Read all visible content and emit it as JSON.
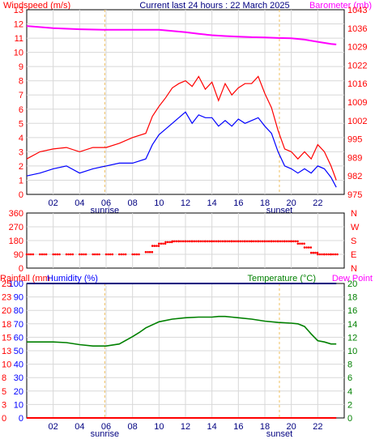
{
  "header": {
    "left_label": "Windspeed (m/s)",
    "center_label": "Current last 24 hours : 22 March 2025",
    "right_label": "Barometer (mb)"
  },
  "colors": {
    "wind_gust": "#ff0000",
    "wind_avg": "#0000ff",
    "barometer": "#ff00ff",
    "direction": "#ff0000",
    "temperature": "#008000",
    "humidity": "#000080",
    "rainfall": "#ff0000",
    "axis_red": "#ff0000",
    "axis_blue": "#0000ff",
    "axis_green": "#008000",
    "axis_magenta": "#ff00ff",
    "grid": "#d8d8d8"
  },
  "x_axis": {
    "ticks": [
      "02",
      "04",
      "06",
      "08",
      "10",
      "12",
      "14",
      "16",
      "18",
      "20",
      "22"
    ],
    "sunrise_label": "sunrise",
    "sunset_label": "sunset",
    "sunrise_hour": 5.9,
    "sunset_hour": 19.1
  },
  "chart_data": [
    {
      "type": "line",
      "name": "wind-barometer",
      "left_axis": {
        "label": "Windspeed (m/s)",
        "range": [
          0,
          13
        ],
        "ticks": [
          "0",
          "1",
          "2",
          "3",
          "4",
          "5",
          "6",
          "7",
          "8",
          "9",
          "10",
          "11",
          "12",
          "13"
        ]
      },
      "right_axis": {
        "label": "Barometer (mb)",
        "range": [
          975,
          1043
        ],
        "ticks": [
          "975",
          "982",
          "989",
          "995",
          "1002",
          "1009",
          "1016",
          "1022",
          "1029",
          "1036",
          "1043"
        ]
      },
      "x_range": [
        0,
        24
      ],
      "series": [
        {
          "name": "Wind gust",
          "x": [
            0,
            1,
            2,
            3,
            4,
            5,
            6,
            7,
            8,
            9,
            9.5,
            10,
            10.5,
            11,
            11.5,
            12,
            12.5,
            13,
            13.5,
            14,
            14.5,
            15,
            15.5,
            16,
            16.5,
            17,
            17.5,
            18,
            18.5,
            19,
            19.5,
            20,
            20.5,
            21,
            21.5,
            22,
            22.5,
            23,
            23.4
          ],
          "values": [
            2.5,
            3.0,
            3.2,
            3.3,
            3.0,
            3.3,
            3.3,
            3.6,
            4.0,
            4.3,
            5.5,
            6.2,
            6.8,
            7.5,
            7.8,
            8.0,
            7.6,
            8.3,
            7.4,
            7.9,
            6.6,
            7.8,
            7.0,
            7.5,
            7.8,
            7.8,
            8.3,
            7.1,
            6.1,
            4.5,
            3.2,
            3.0,
            2.5,
            3.0,
            2.5,
            3.5,
            3.0,
            2.0,
            1.0
          ]
        },
        {
          "name": "Wind avg",
          "x": [
            0,
            1,
            2,
            3,
            4,
            5,
            6,
            7,
            8,
            9,
            9.5,
            10,
            10.5,
            11,
            11.5,
            12,
            12.5,
            13,
            13.5,
            14,
            14.5,
            15,
            15.5,
            16,
            16.5,
            17,
            17.5,
            18,
            18.5,
            19,
            19.5,
            20,
            20.5,
            21,
            21.5,
            22,
            22.5,
            23,
            23.4
          ],
          "values": [
            1.3,
            1.5,
            1.8,
            2.0,
            1.5,
            1.8,
            2.0,
            2.2,
            2.2,
            2.5,
            3.5,
            4.2,
            4.6,
            5.0,
            5.4,
            5.8,
            5.0,
            5.6,
            5.4,
            5.4,
            4.8,
            5.2,
            4.8,
            5.3,
            5.0,
            5.2,
            5.4,
            4.8,
            4.3,
            3.0,
            2.0,
            1.8,
            1.5,
            1.8,
            1.5,
            2.0,
            1.8,
            1.2,
            0.5
          ]
        },
        {
          "name": "Barometer",
          "axis": "right",
          "x": [
            0,
            2,
            4,
            6,
            8,
            10,
            11,
            12,
            13,
            14,
            15,
            16,
            17,
            18,
            19,
            20,
            21,
            22,
            23,
            23.4
          ],
          "values": [
            1037,
            1036.2,
            1035.8,
            1035.6,
            1035.6,
            1035.6,
            1035.2,
            1034.7,
            1034.1,
            1033.6,
            1033.3,
            1033.1,
            1032.9,
            1032.8,
            1032.6,
            1032.5,
            1032.0,
            1031.2,
            1030.4,
            1030.2
          ]
        }
      ]
    },
    {
      "type": "scatter",
      "name": "wind-direction",
      "left_axis": {
        "range": [
          0,
          360
        ],
        "ticks": [
          "0",
          "90",
          "180",
          "270",
          "360"
        ]
      },
      "right_axis": {
        "ticks": [
          "N",
          "E",
          "S",
          "W",
          "N"
        ]
      },
      "x_range": [
        0,
        24
      ],
      "series": [
        {
          "name": "Direction",
          "x": [
            0,
            1,
            2,
            3,
            4,
            5,
            6,
            7,
            8,
            9,
            9.5,
            10,
            10.5,
            11,
            11.5,
            12,
            12.5,
            13,
            13.5,
            14,
            14.5,
            15,
            15.5,
            16,
            16.5,
            17,
            17.5,
            18,
            18.5,
            19,
            19.5,
            20,
            20.5,
            21,
            21.5,
            22,
            22.5,
            23
          ],
          "values": [
            90,
            90,
            90,
            90,
            90,
            90,
            90,
            90,
            90,
            105,
            145,
            160,
            170,
            175,
            175,
            175,
            175,
            175,
            175,
            175,
            175,
            175,
            175,
            175,
            175,
            175,
            175,
            175,
            175,
            175,
            175,
            175,
            160,
            135,
            100,
            90,
            90,
            90
          ]
        }
      ]
    },
    {
      "type": "line",
      "name": "temperature-humidity-rainfall",
      "left_axis": {
        "range": [
          0,
          100
        ],
        "ticks": [
          "0",
          "10",
          "20",
          "30",
          "40",
          "50",
          "60",
          "70",
          "80",
          "90",
          "100"
        ]
      },
      "left_axis_rain": {
        "range": [
          0,
          25
        ],
        "ticks": [
          "0",
          "3",
          "5",
          "8",
          "10",
          "13",
          "15",
          "18",
          "20",
          "23",
          "25"
        ]
      },
      "right_axis": {
        "label": "Temperature (°C)",
        "range": [
          0,
          20
        ],
        "ticks": [
          "0",
          "2",
          "4",
          "6",
          "8",
          "10",
          "12",
          "14",
          "16",
          "18",
          "20"
        ]
      },
      "labels": {
        "rainfall": "Rainfall (mm",
        "humidity": "Humidity (%)",
        "temperature": "Temperature (°C)",
        "dew_point": "Dew Point"
      },
      "x_range": [
        0,
        24
      ],
      "series": [
        {
          "name": "Temperature",
          "axis": "right",
          "x": [
            0,
            1,
            2,
            3,
            4,
            5,
            6,
            7,
            8,
            8.5,
            9,
            10,
            11,
            12,
            13,
            14,
            14.5,
            15,
            15.5,
            16,
            17,
            18,
            19,
            20,
            20.5,
            21,
            21.5,
            22,
            22.5,
            23,
            23.4
          ],
          "values": [
            11.3,
            11.3,
            11.3,
            11.2,
            10.9,
            10.7,
            10.7,
            11.0,
            12.1,
            12.7,
            13.4,
            14.3,
            14.7,
            14.9,
            15.0,
            15.0,
            15.1,
            15.1,
            15.0,
            14.9,
            14.7,
            14.4,
            14.2,
            14.1,
            14.0,
            13.6,
            12.5,
            11.5,
            11.3,
            11.0,
            11.0
          ]
        },
        {
          "name": "Humidity",
          "x": [
            0,
            23.4
          ],
          "values": [
            100,
            100
          ]
        },
        {
          "name": "Rainfall",
          "axis": "rain",
          "x": [
            0,
            23.4
          ],
          "values": [
            0,
            0
          ]
        }
      ]
    }
  ]
}
